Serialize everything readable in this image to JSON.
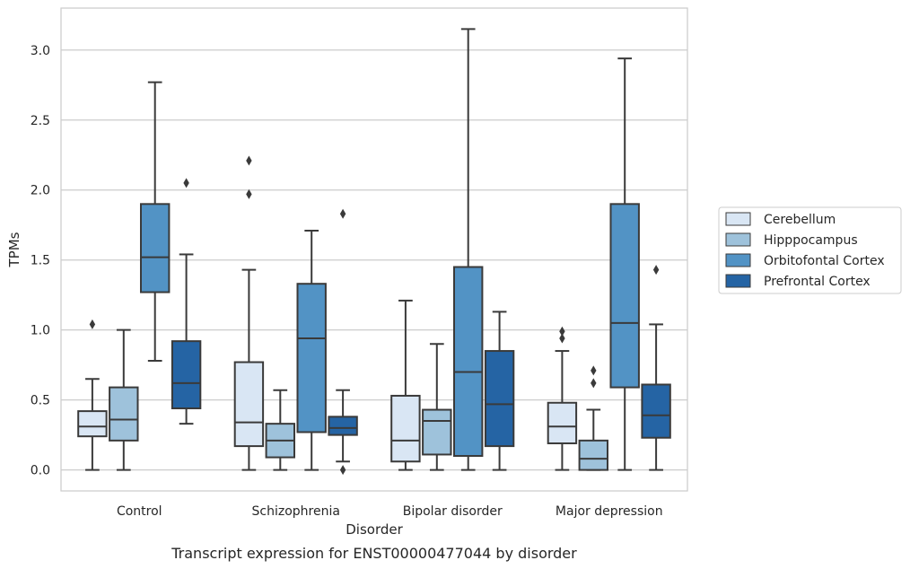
{
  "chart_data": {
    "type": "box",
    "title": "",
    "caption": "Transcript expression for ENST00000477044 by disorder",
    "xlabel": "Disorder",
    "ylabel": "TPMs",
    "ylim": [
      -0.15,
      3.3
    ],
    "yticks": [
      0.0,
      0.5,
      1.0,
      1.5,
      2.0,
      2.5,
      3.0
    ],
    "ytick_labels": [
      "0.0",
      "0.5",
      "1.0",
      "1.5",
      "2.0",
      "2.5",
      "3.0"
    ],
    "grid": true,
    "legend_position": "right",
    "categories": [
      "Control",
      "Schizophrenia",
      "Bipolar disorder",
      "Major depression"
    ],
    "series": [
      {
        "name": "Cerebellum",
        "color": "#d9e6f4",
        "boxes": [
          {
            "q1": 0.24,
            "median": 0.31,
            "q3": 0.42,
            "whisker_low": 0.0,
            "whisker_high": 0.65,
            "outliers": [
              1.04
            ]
          },
          {
            "q1": 0.17,
            "median": 0.34,
            "q3": 0.77,
            "whisker_low": 0.0,
            "whisker_high": 1.43,
            "outliers": [
              1.97,
              2.21
            ]
          },
          {
            "q1": 0.06,
            "median": 0.21,
            "q3": 0.53,
            "whisker_low": 0.0,
            "whisker_high": 1.21,
            "outliers": []
          },
          {
            "q1": 0.19,
            "median": 0.31,
            "q3": 0.48,
            "whisker_low": 0.0,
            "whisker_high": 0.85,
            "outliers": [
              0.94,
              0.99
            ]
          }
        ]
      },
      {
        "name": "Hipppocampus",
        "color": "#9ec2db",
        "boxes": [
          {
            "q1": 0.21,
            "median": 0.36,
            "q3": 0.59,
            "whisker_low": 0.0,
            "whisker_high": 1.0,
            "outliers": []
          },
          {
            "q1": 0.09,
            "median": 0.21,
            "q3": 0.33,
            "whisker_low": 0.0,
            "whisker_high": 0.57,
            "outliers": []
          },
          {
            "q1": 0.11,
            "median": 0.35,
            "q3": 0.43,
            "whisker_low": 0.0,
            "whisker_high": 0.9,
            "outliers": []
          },
          {
            "q1": 0.0,
            "median": 0.08,
            "q3": 0.21,
            "whisker_low": 0.0,
            "whisker_high": 0.43,
            "outliers": [
              0.62,
              0.71
            ]
          }
        ]
      },
      {
        "name": "Orbitofontal Cortex",
        "color": "#5293c5",
        "boxes": [
          {
            "q1": 1.27,
            "median": 1.52,
            "q3": 1.9,
            "whisker_low": 0.78,
            "whisker_high": 2.77,
            "outliers": []
          },
          {
            "q1": 0.27,
            "median": 0.94,
            "q3": 1.33,
            "whisker_low": 0.0,
            "whisker_high": 1.71,
            "outliers": []
          },
          {
            "q1": 0.1,
            "median": 0.7,
            "q3": 1.45,
            "whisker_low": 0.0,
            "whisker_high": 3.15,
            "outliers": []
          },
          {
            "q1": 0.59,
            "median": 1.05,
            "q3": 1.9,
            "whisker_low": 0.0,
            "whisker_high": 2.94,
            "outliers": []
          }
        ]
      },
      {
        "name": "Prefrontal Cortex",
        "color": "#2564a4",
        "boxes": [
          {
            "q1": 0.44,
            "median": 0.62,
            "q3": 0.92,
            "whisker_low": 0.33,
            "whisker_high": 1.54,
            "outliers": [
              2.05
            ]
          },
          {
            "q1": 0.25,
            "median": 0.3,
            "q3": 0.38,
            "whisker_low": 0.06,
            "whisker_high": 0.57,
            "outliers": [
              0.0,
              1.83
            ]
          },
          {
            "q1": 0.17,
            "median": 0.47,
            "q3": 0.85,
            "whisker_low": 0.0,
            "whisker_high": 1.13,
            "outliers": []
          },
          {
            "q1": 0.23,
            "median": 0.39,
            "q3": 0.61,
            "whisker_low": 0.0,
            "whisker_high": 1.04,
            "outliers": [
              1.43
            ]
          }
        ]
      }
    ]
  }
}
